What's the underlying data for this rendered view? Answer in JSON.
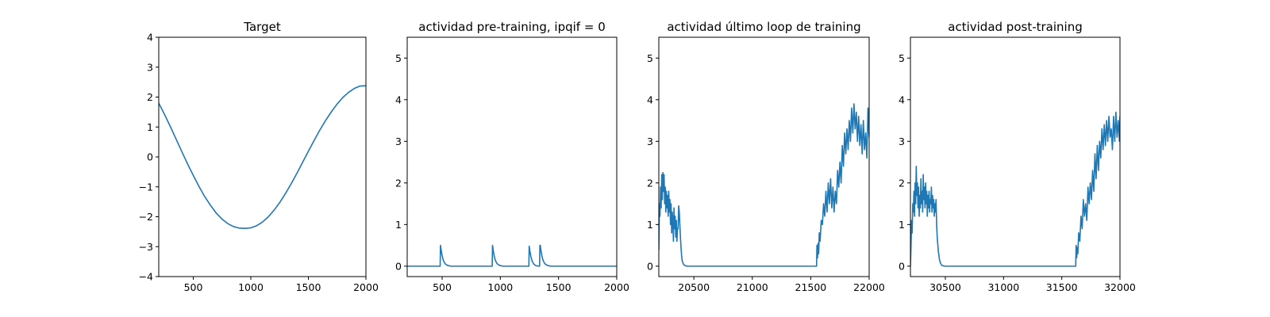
{
  "chart_data": [
    {
      "type": "line",
      "title": "Target",
      "xlim": [
        200,
        2000
      ],
      "ylim": [
        -4,
        4
      ],
      "xticks": [
        500,
        1000,
        1500,
        2000
      ],
      "yticks": [
        -4,
        -3,
        -2,
        -1,
        0,
        1,
        2,
        3,
        4
      ],
      "grid": false,
      "color": "#1f77b4",
      "series": [
        {
          "x": [
            200,
            250,
            300,
            350,
            400,
            450,
            500,
            550,
            600,
            650,
            700,
            750,
            800,
            850,
            900,
            950,
            980,
            1000,
            1050,
            1100,
            1150,
            1200,
            1250,
            1300,
            1350,
            1400,
            1450,
            1500,
            1550,
            1600,
            1650,
            1700,
            1750,
            1800,
            1850,
            1900,
            1950,
            2000
          ],
          "y": [
            1.8,
            1.42,
            1.02,
            0.6,
            0.18,
            -0.23,
            -0.62,
            -0.99,
            -1.33,
            -1.62,
            -1.88,
            -2.08,
            -2.23,
            -2.33,
            -2.38,
            -2.39,
            -2.38,
            -2.37,
            -2.3,
            -2.18,
            -2.01,
            -1.79,
            -1.53,
            -1.23,
            -0.9,
            -0.55,
            -0.18,
            0.19,
            0.55,
            0.9,
            1.22,
            1.51,
            1.77,
            1.99,
            2.16,
            2.29,
            2.37,
            2.38
          ]
        }
      ]
    },
    {
      "type": "line",
      "title": "actividad pre-training, ipqif = 0",
      "xlim": [
        200,
        2000
      ],
      "ylim": [
        -0.25,
        5.5
      ],
      "xticks": [
        500,
        1000,
        1500,
        2000
      ],
      "yticks": [
        0,
        1,
        2,
        3,
        4,
        5
      ],
      "grid": false,
      "color": "#1f77b4",
      "series": [
        {
          "x": [
            200,
            483,
            486,
            492,
            500,
            510,
            525,
            545,
            575,
            930,
            933,
            939,
            947,
            957,
            972,
            992,
            1022,
            1245,
            1248,
            1254,
            1262,
            1272,
            1287,
            1307,
            1337,
            1340,
            1343,
            1349,
            1357,
            1367,
            1382,
            1402,
            1432,
            2000
          ],
          "y": [
            0,
            0,
            0.5,
            0.38,
            0.25,
            0.14,
            0.06,
            0.02,
            0,
            0,
            0.5,
            0.38,
            0.25,
            0.14,
            0.06,
            0.02,
            0,
            0,
            0.48,
            0.36,
            0.24,
            0.13,
            0.05,
            0.01,
            0,
            0.5,
            0.5,
            0.38,
            0.25,
            0.14,
            0.06,
            0.02,
            0,
            0
          ]
        }
      ]
    },
    {
      "type": "line",
      "title": "actividad último loop de training",
      "xlim": [
        20200,
        22000
      ],
      "ylim": [
        -0.25,
        5.5
      ],
      "xticks": [
        20500,
        21000,
        21500,
        22000
      ],
      "yticks": [
        0,
        1,
        2,
        3,
        4,
        5
      ],
      "grid": false,
      "color": "#1f77b4",
      "series": [
        {
          "x": [
            20200,
            20205,
            20210,
            20215,
            20220,
            20225,
            20230,
            20235,
            20240,
            20245,
            20250,
            20255,
            20260,
            20265,
            20270,
            20275,
            20280,
            20285,
            20290,
            20295,
            20300,
            20305,
            20310,
            20315,
            20320,
            20325,
            20330,
            20335,
            20340,
            20345,
            20350,
            20355,
            20360,
            20365,
            20370,
            20375,
            20380,
            20385,
            20390,
            20395,
            20400,
            20410,
            20420,
            20430,
            20440,
            20460,
            20480,
            20520,
            21550,
            21553,
            21558,
            21563,
            21568,
            21573,
            21580,
            21590,
            21600,
            21610,
            21620,
            21630,
            21640,
            21650,
            21660,
            21670,
            21680,
            21690,
            21700,
            21710,
            21720,
            21730,
            21740,
            21750,
            21760,
            21770,
            21780,
            21790,
            21800,
            21810,
            21820,
            21830,
            21840,
            21850,
            21860,
            21870,
            21880,
            21890,
            21900,
            21910,
            21920,
            21930,
            21940,
            21950,
            21960,
            21970,
            21980,
            21990,
            22000
          ],
          "y": [
            0.4,
            1.5,
            1.2,
            1.9,
            1.4,
            2.2,
            1.6,
            2.25,
            1.8,
            2.2,
            1.5,
            1.9,
            1.3,
            1.8,
            1.4,
            1.7,
            1.2,
            1.8,
            1.3,
            1.6,
            1.0,
            1.5,
            0.8,
            1.3,
            1.1,
            0.6,
            1.4,
            0.9,
            1.2,
            0.7,
            1.1,
            0.6,
            0.9,
            0.9,
            1.45,
            1.3,
            1.0,
            0.7,
            0.45,
            0.25,
            0.13,
            0.05,
            0.02,
            0.01,
            0,
            0,
            0,
            0,
            0,
            0.5,
            0.2,
            0.55,
            0.3,
            0.8,
            0.6,
            1.1,
            1.0,
            1.5,
            1.2,
            1.8,
            1.3,
            2.0,
            1.5,
            2.1,
            1.4,
            1.9,
            1.3,
            1.8,
            1.5,
            2.3,
            1.9,
            2.5,
            2.0,
            2.9,
            2.4,
            3.2,
            2.7,
            3.3,
            2.8,
            3.5,
            3.0,
            3.8,
            3.2,
            3.9,
            3.3,
            3.7,
            3.0,
            3.6,
            2.9,
            3.4,
            2.7,
            3.5,
            2.8,
            3.2,
            2.6,
            3.8,
            3.1
          ]
        }
      ]
    },
    {
      "type": "line",
      "title": "actividad post-training",
      "xlim": [
        30200,
        32000
      ],
      "ylim": [
        -0.25,
        5.5
      ],
      "xticks": [
        30500,
        31000,
        31500,
        32000
      ],
      "yticks": [
        0,
        1,
        2,
        3,
        4,
        5
      ],
      "grid": false,
      "color": "#1f77b4",
      "series": [
        {
          "x": [
            30200,
            30205,
            30210,
            30215,
            30220,
            30225,
            30230,
            30235,
            30240,
            30245,
            30250,
            30255,
            30260,
            30265,
            30270,
            30275,
            30280,
            30285,
            30290,
            30295,
            30300,
            30305,
            30310,
            30315,
            30320,
            30325,
            30330,
            30335,
            30340,
            30345,
            30350,
            30355,
            30360,
            30365,
            30370,
            30375,
            30380,
            30385,
            30390,
            30395,
            30400,
            30405,
            30410,
            30415,
            30420,
            30425,
            30430,
            30440,
            30450,
            30460,
            30470,
            30480,
            30500,
            30530,
            31620,
            31623,
            31628,
            31633,
            31638,
            31645,
            31655,
            31665,
            31675,
            31685,
            31695,
            31705,
            31715,
            31725,
            31735,
            31745,
            31755,
            31765,
            31775,
            31785,
            31795,
            31805,
            31815,
            31825,
            31835,
            31845,
            31855,
            31865,
            31875,
            31885,
            31895,
            31905,
            31915,
            31925,
            31935,
            31945,
            31955,
            31965,
            31975,
            31985,
            31995,
            32000
          ],
          "y": [
            0,
            0.5,
            1.1,
            0.8,
            1.5,
            1.3,
            1.8,
            1.2,
            2.0,
            1.5,
            2.4,
            1.7,
            2.0,
            1.4,
            1.9,
            1.2,
            1.7,
            1.4,
            2.1,
            1.5,
            1.8,
            1.3,
            2.2,
            1.6,
            1.9,
            1.4,
            2.0,
            1.5,
            1.8,
            1.2,
            1.7,
            1.4,
            1.8,
            1.3,
            1.6,
            1.5,
            1.9,
            1.3,
            1.7,
            1.4,
            1.6,
            1.2,
            1.5,
            1.3,
            1.6,
            1.0,
            0.7,
            0.35,
            0.15,
            0.06,
            0.02,
            0.01,
            0,
            0,
            0,
            0.5,
            0.2,
            0.45,
            0.3,
            0.8,
            0.6,
            1.2,
            0.9,
            1.6,
            1.2,
            1.5,
            1.1,
            1.9,
            1.5,
            2.0,
            1.6,
            2.3,
            1.8,
            2.7,
            2.1,
            2.9,
            2.3,
            3.0,
            2.6,
            3.3,
            2.8,
            3.4,
            2.9,
            3.5,
            3.0,
            3.6,
            3.1,
            3.3,
            2.8,
            3.6,
            3.0,
            3.7,
            3.1,
            3.5,
            3.0,
            3.6
          ]
        }
      ]
    }
  ]
}
